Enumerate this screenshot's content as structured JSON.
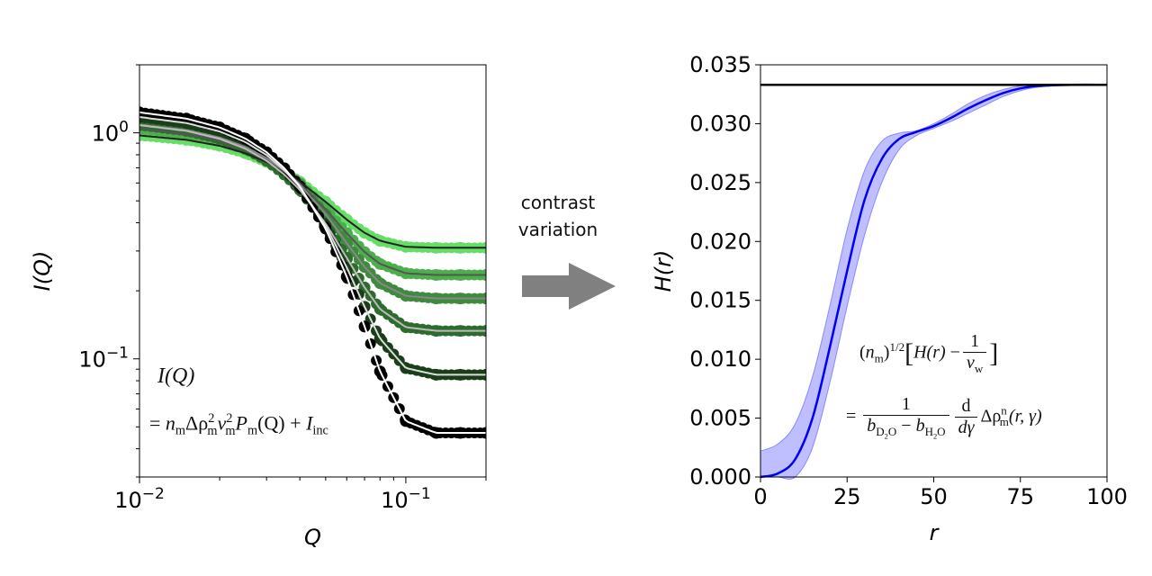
{
  "annotation": {
    "line1": "contrast",
    "line2": "variation",
    "arrow_color": "#808080"
  },
  "chart_data": [
    {
      "type": "scatter",
      "xlabel": "Q",
      "ylabel": "I(Q)",
      "xscale": "log",
      "yscale": "log",
      "xlim": [
        0.01,
        0.2
      ],
      "ylim": [
        0.03,
        2.0
      ],
      "xticks": [
        {
          "value": 0.01,
          "base": "10",
          "exp": "−2"
        },
        {
          "value": 0.1,
          "base": "10",
          "exp": "−1"
        }
      ],
      "yticks": [
        {
          "value": 1,
          "base": "10",
          "exp": "0"
        },
        {
          "value": 0.1,
          "base": "10",
          "exp": "−1"
        }
      ],
      "grid": false,
      "x": [
        0.01,
        0.015,
        0.02,
        0.025,
        0.03,
        0.035,
        0.04,
        0.05,
        0.06,
        0.07,
        0.08,
        0.1,
        0.13,
        0.16,
        0.2
      ],
      "series": [
        {
          "color": "#66dd66",
          "fit_color": "#222222",
          "values": [
            0.974,
            0.931,
            0.876,
            0.812,
            0.743,
            0.674,
            0.608,
            0.495,
            0.413,
            0.361,
            0.333,
            0.313,
            0.31,
            0.31,
            0.31
          ]
        },
        {
          "color": "#4caf4c",
          "fit_color": "#555555",
          "values": [
            1.041,
            0.989,
            0.922,
            0.844,
            0.761,
            0.677,
            0.597,
            0.459,
            0.36,
            0.297,
            0.263,
            0.239,
            0.235,
            0.235,
            0.235
          ]
        },
        {
          "color": "#3f8a3f",
          "fit_color": "#888888",
          "values": [
            1.086,
            1.028,
            0.953,
            0.866,
            0.773,
            0.679,
            0.59,
            0.436,
            0.325,
            0.255,
            0.216,
            0.19,
            0.185,
            0.185,
            0.185
          ]
        },
        {
          "color": "#2e6b2e",
          "fit_color": "#bbbbbb",
          "values": [
            1.081,
            1.02,
            0.941,
            0.85,
            0.752,
            0.653,
            0.559,
            0.397,
            0.28,
            0.207,
            0.166,
            0.138,
            0.133,
            0.133,
            0.133
          ]
        },
        {
          "color": "#1a3d1a",
          "fit_color": "#dddddd",
          "values": [
            1.175,
            1.105,
            1.014,
            0.91,
            0.797,
            0.683,
            0.575,
            0.389,
            0.254,
            0.17,
            0.123,
            0.091,
            0.085,
            0.085,
            0.085
          ]
        },
        {
          "color": "#000000",
          "fit_color": "#ffffff",
          "values": [
            1.232,
            1.156,
            1.057,
            0.943,
            0.821,
            0.697,
            0.58,
            0.377,
            0.231,
            0.139,
            0.088,
            0.053,
            0.047,
            0.047,
            0.047
          ]
        }
      ],
      "equation": {
        "lhs": "I(Q)",
        "eq": "=",
        "n": "n",
        "m": "m",
        "delta_rho": "Δρ",
        "sq": "2",
        "nu": "ν",
        "P": "P",
        "Q": "(Q)",
        "plus": "+",
        "I": "I",
        "inc": "inc"
      }
    },
    {
      "type": "line",
      "xlabel": "r",
      "ylabel": "H(r)",
      "xlim": [
        0,
        100
      ],
      "ylim": [
        0,
        0.035
      ],
      "xticks": [
        "0",
        "25",
        "50",
        "75",
        "100"
      ],
      "yticks": [
        "0.000",
        "0.005",
        "0.010",
        "0.015",
        "0.020",
        "0.025",
        "0.030",
        "0.035"
      ],
      "grid": false,
      "x": [
        0,
        5,
        10,
        15,
        20,
        25,
        30,
        35,
        40,
        45,
        50,
        55,
        60,
        65,
        70,
        75,
        80,
        90,
        100
      ],
      "values": [
        0,
        0.0003,
        0.0015,
        0.005,
        0.011,
        0.0175,
        0.0235,
        0.027,
        0.0287,
        0.0293,
        0.0298,
        0.0305,
        0.0313,
        0.032,
        0.0326,
        0.033,
        0.0332,
        0.0333,
        0.0333
      ],
      "upper": [
        0.0022,
        0.0028,
        0.0045,
        0.0085,
        0.0145,
        0.021,
        0.026,
        0.0285,
        0.0292,
        0.0294,
        0.03,
        0.0308,
        0.0317,
        0.0324,
        0.0329,
        0.0332,
        0.0333,
        0.0333,
        0.0333
      ],
      "lower": [
        0,
        0,
        0,
        0.0025,
        0.008,
        0.0145,
        0.0205,
        0.025,
        0.0278,
        0.029,
        0.0296,
        0.0302,
        0.0309,
        0.0316,
        0.0323,
        0.0328,
        0.0331,
        0.0333,
        0.0333
      ],
      "line_color": "#0000ee",
      "band_color": "#aaaaff",
      "hline": {
        "value": 0.0333,
        "color": "#000000"
      },
      "equation": {
        "open": "(",
        "n": "n",
        "m": "m",
        "close": ")",
        "half": "1/2",
        "H": "H(r)",
        "minus": "−",
        "one": "1",
        "nu": "ν",
        "w": "w",
        "eq": "=",
        "b": "b",
        "d2o_a": "D",
        "two": "2",
        "d2o_b": "O",
        "h2o_a": "H",
        "d": "d",
        "dgamma": "dγ",
        "delta_rho": "Δρ",
        "sup_n": "n",
        "args": "(r, γ)"
      }
    }
  ]
}
